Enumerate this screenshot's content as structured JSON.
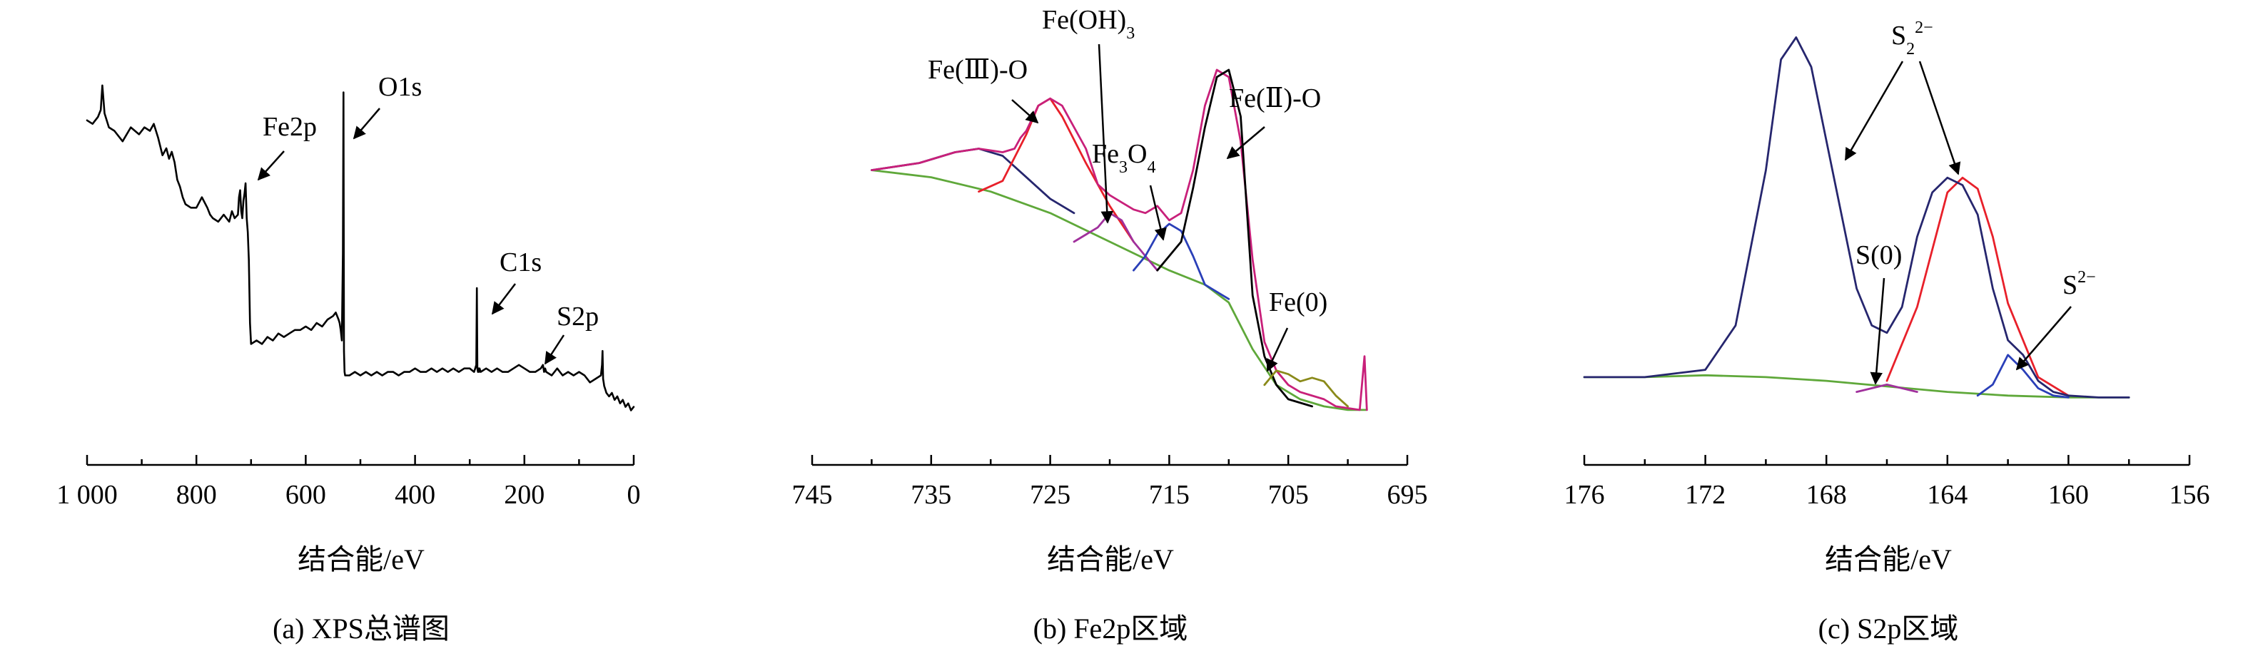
{
  "colors": {
    "black": "#000000",
    "red": "#e8202a",
    "blue": "#2a3fb8",
    "green": "#5fa83a",
    "purple": "#a0309c",
    "magenta": "#c8207a",
    "navy": "#26266e",
    "olive": "#8a8a1a"
  },
  "chart_data": [
    {
      "id": "a",
      "type": "line",
      "caption": "(a) XPS总谱图",
      "xlabel": "结合能/eV",
      "ylabel": "",
      "xlim": [
        1000,
        0
      ],
      "reversed_x": true,
      "ticks": [
        1000,
        800,
        600,
        400,
        200,
        0
      ],
      "tick_labels": [
        "1 000",
        "800",
        "600",
        "400",
        "200",
        "0"
      ],
      "minor_ticks": [
        900,
        700,
        500,
        300,
        100
      ],
      "ylim": [
        0,
        100
      ],
      "series": [
        {
          "color": "black",
          "x": [
            1000,
            990,
            980,
            975,
            972,
            968,
            960,
            950,
            935,
            920,
            905,
            895,
            885,
            878,
            870,
            862,
            855,
            850,
            845,
            840,
            835,
            830,
            825,
            820,
            810,
            800,
            790,
            780,
            775,
            770,
            760,
            750,
            745,
            740,
            735,
            730,
            724,
            722,
            720,
            718,
            716,
            714,
            712,
            710,
            708,
            706,
            704,
            702,
            700,
            690,
            680,
            670,
            660,
            650,
            640,
            630,
            620,
            610,
            600,
            590,
            580,
            570,
            560,
            550,
            545,
            540,
            538,
            536,
            534,
            532,
            531,
            530,
            529,
            528,
            526,
            524,
            520,
            510,
            500,
            490,
            480,
            470,
            460,
            450,
            440,
            430,
            420,
            410,
            400,
            390,
            380,
            370,
            360,
            350,
            340,
            330,
            320,
            310,
            300,
            292,
            290,
            288,
            287,
            286,
            285,
            284,
            283,
            282,
            280,
            270,
            260,
            250,
            240,
            230,
            220,
            210,
            200,
            190,
            180,
            170,
            166,
            164,
            162,
            160,
            150,
            140,
            130,
            120,
            110,
            100,
            90,
            80,
            70,
            60,
            58,
            57,
            56,
            55,
            54,
            52,
            50,
            45,
            40,
            35,
            30,
            25,
            20,
            15,
            10,
            5,
            0
          ],
          "y": [
            88,
            87,
            89,
            91,
            98,
            90,
            86,
            85,
            82,
            86,
            84,
            86,
            85,
            87,
            83,
            78,
            80,
            77,
            79,
            76,
            71,
            69,
            66,
            64,
            63,
            63,
            66,
            63,
            61,
            60,
            59,
            61,
            60,
            59,
            62,
            60,
            61,
            66,
            68,
            62,
            60,
            65,
            67,
            70,
            60,
            56,
            48,
            30,
            24,
            25,
            24,
            26,
            25,
            27,
            26,
            27,
            28,
            28,
            29,
            28,
            30,
            29,
            31,
            32,
            33,
            31,
            30,
            28,
            25,
            50,
            96,
            22,
            16,
            15,
            15,
            15,
            15,
            16,
            15,
            16,
            15,
            16,
            15,
            16,
            16,
            15,
            16,
            16,
            17,
            16,
            16,
            17,
            16,
            17,
            16,
            17,
            16,
            17,
            17,
            16,
            17,
            18,
            40,
            17,
            16,
            17,
            16,
            17,
            16,
            17,
            16,
            17,
            16,
            16,
            17,
            18,
            17,
            16,
            16,
            17,
            18,
            16,
            17,
            16,
            15,
            17,
            15,
            16,
            15,
            16,
            15,
            13,
            14,
            15,
            18,
            22,
            14,
            13,
            12,
            11,
            10,
            9,
            10,
            8,
            9,
            7,
            8,
            6,
            7,
            5,
            6
          ]
        }
      ],
      "annotations": [
        {
          "text": "Fe2p",
          "x": 710,
          "y": 70
        },
        {
          "text": "O1s",
          "x": 531,
          "y": 96
        },
        {
          "text": "C1s",
          "x": 285,
          "y": 40
        },
        {
          "text": "S2p",
          "x": 164,
          "y": 18
        }
      ]
    },
    {
      "id": "b",
      "type": "line",
      "caption": "(b) Fe2p区域",
      "xlabel": "结合能/eV",
      "ylabel": "",
      "xlim": [
        745,
        695
      ],
      "reversed_x": true,
      "ticks": [
        745,
        735,
        725,
        715,
        705,
        695
      ],
      "tick_labels": [
        "745",
        "735",
        "725",
        "715",
        "705",
        "695"
      ],
      "minor_ticks": [
        740,
        730,
        720,
        710,
        700
      ],
      "ylim": [
        0,
        100
      ],
      "series": [
        {
          "color": "green",
          "x": [
            740,
            735,
            730,
            725,
            720,
            715,
            712,
            710,
            708,
            706,
            704,
            702,
            700,
            698.5
          ],
          "y": [
            70,
            68,
            64,
            58,
            50,
            42,
            38,
            33,
            20,
            10,
            6,
            4,
            3,
            3
          ]
        },
        {
          "color": "navy",
          "x": [
            740,
            736,
            733,
            731,
            729,
            727,
            725,
            723
          ],
          "y": [
            70,
            72,
            75,
            76,
            74,
            68,
            62,
            58
          ]
        },
        {
          "color": "red",
          "x": [
            731,
            729,
            727,
            726,
            725,
            724,
            722,
            720,
            718
          ],
          "y": [
            64,
            67,
            80,
            88,
            90,
            85,
            72,
            60,
            50
          ]
        },
        {
          "color": "magenta",
          "x": [
            740,
            736,
            733,
            731,
            729,
            728,
            727.5,
            727,
            726,
            725,
            724,
            722,
            721,
            720,
            719,
            718,
            717,
            716,
            715,
            714,
            713,
            712,
            711,
            710,
            709,
            708,
            707,
            706,
            705,
            704,
            703,
            702,
            701,
            699,
            698.6,
            698.4
          ],
          "y": [
            70,
            72,
            75,
            76,
            75,
            76,
            79,
            81,
            88,
            90,
            88,
            76,
            66,
            63,
            61,
            59,
            58,
            60,
            56,
            58,
            70,
            88,
            98,
            96,
            78,
            45,
            22,
            14,
            10,
            8,
            7,
            6,
            4,
            3,
            18,
            3
          ]
        },
        {
          "color": "purple",
          "x": [
            723,
            721,
            720,
            719,
            718,
            717,
            716
          ],
          "y": [
            50,
            54,
            58,
            56,
            50,
            46,
            42
          ]
        },
        {
          "color": "blue",
          "x": [
            718,
            717,
            716,
            715,
            714,
            713,
            712,
            711,
            710
          ],
          "y": [
            42,
            46,
            52,
            55,
            53,
            46,
            38,
            36,
            34
          ]
        },
        {
          "color": "black",
          "x": [
            716,
            714,
            713,
            712,
            711,
            710,
            709,
            708.5,
            708,
            707,
            706,
            705,
            704,
            703
          ],
          "y": [
            42,
            50,
            65,
            82,
            96,
            98,
            85,
            60,
            35,
            18,
            10,
            6,
            5,
            4
          ]
        },
        {
          "color": "olive",
          "x": [
            707,
            706,
            705,
            704,
            703,
            702,
            701,
            700
          ],
          "y": [
            10,
            14,
            13,
            11,
            12,
            11,
            7,
            4
          ]
        }
      ],
      "annotations": [
        {
          "text": "Fe(Ⅲ)-O",
          "x": 725,
          "y": 88
        },
        {
          "text": "Fe(OH)",
          "sub": "3",
          "x": 720,
          "y": 58
        },
        {
          "text": "Fe",
          "sub": "3",
          "text2": "O",
          "sub2": "4",
          "x": 714,
          "y": 52
        },
        {
          "text": "Fe(Ⅱ)-O",
          "x": 709,
          "y": 88
        },
        {
          "text": "Fe(0)",
          "x": 703,
          "y": 12
        }
      ]
    },
    {
      "id": "c",
      "type": "line",
      "caption": "(c) S2p区域",
      "xlabel": "结合能/eV",
      "ylabel": "",
      "xlim": [
        176,
        156
      ],
      "reversed_x": true,
      "ticks": [
        176,
        172,
        168,
        164,
        160,
        156
      ],
      "tick_labels": [
        "176",
        "172",
        "168",
        "164",
        "160",
        "156"
      ],
      "minor_ticks": [
        174,
        170,
        166,
        162,
        158
      ],
      "ylim": [
        0,
        100
      ],
      "series": [
        {
          "color": "green",
          "x": [
            176,
            174,
            172,
            170,
            168,
            166,
            164,
            162,
            160,
            158
          ],
          "y": [
            6,
            6,
            6.5,
            6,
            5,
            3.5,
            2,
            1,
            0.5,
            0.5
          ]
        },
        {
          "color": "red",
          "x": [
            166,
            165,
            164,
            163.5,
            163,
            162.5,
            162,
            161,
            160
          ],
          "y": [
            5,
            25,
            56,
            60,
            57,
            44,
            26,
            6,
            1
          ]
        },
        {
          "color": "blue",
          "x": [
            163,
            162.5,
            162,
            161.5,
            161,
            160.5,
            160
          ],
          "y": [
            1,
            4,
            12,
            8,
            3,
            1,
            0.5
          ]
        },
        {
          "color": "purple",
          "x": [
            167,
            166.5,
            166,
            165.5,
            165
          ],
          "y": [
            2,
            3,
            4,
            3,
            2
          ]
        },
        {
          "color": "navy",
          "x": [
            176,
            174,
            172,
            171,
            170,
            169.5,
            169,
            168.5,
            168,
            167,
            166.5,
            166,
            165.5,
            165,
            164.5,
            164,
            163.5,
            163,
            162.5,
            162,
            161.5,
            161,
            160.5,
            160,
            159,
            158
          ],
          "y": [
            6,
            6,
            8,
            20,
            62,
            92,
            98,
            90,
            70,
            30,
            20,
            18,
            25,
            44,
            56,
            60,
            58,
            50,
            30,
            16,
            12,
            5,
            2,
            1,
            0.5,
            0.5
          ]
        }
      ],
      "annotations": [
        {
          "text": "S",
          "sub": "2",
          "sup": "2−",
          "x": 168,
          "y": 70
        },
        {
          "text": "S(0)",
          "x": 166,
          "y": 4
        },
        {
          "text": "S",
          "sup": "2−",
          "x": 161.5,
          "y": 5
        }
      ]
    }
  ]
}
